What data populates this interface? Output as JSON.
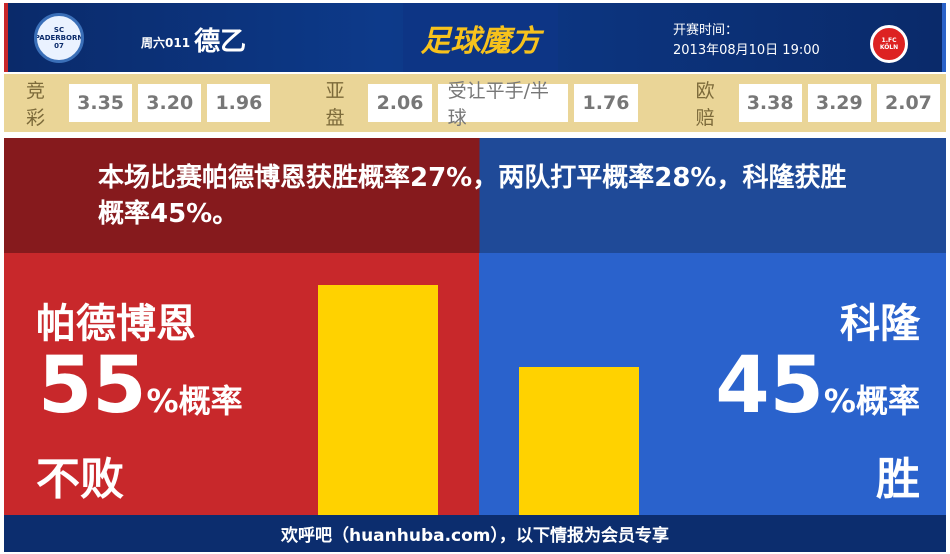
{
  "header": {
    "home_logo_text": "SC PADERBORN 07",
    "away_logo_text": "1.FC KÖLN",
    "match_no": "周六011",
    "league": "德乙",
    "brand": "足球魔方",
    "time_label": "开赛时间：",
    "time_value": "2013年08月10日 19:00"
  },
  "odds": {
    "jc_label": "竞彩",
    "jc": [
      "3.35",
      "3.20",
      "1.96"
    ],
    "ya_label": "亚盘",
    "ya": [
      "2.06",
      "受让平手/半球",
      "1.76"
    ],
    "ou_label": "欧赔",
    "ou": [
      "3.38",
      "3.29",
      "2.07"
    ]
  },
  "summary": "本场比赛帕德博恩获胜概率27%，两队打平概率28%，科隆获胜概率45%。",
  "home": {
    "name": "帕德博恩",
    "percent": "55",
    "unit": "%概率",
    "result": "不败",
    "value": 55
  },
  "away": {
    "name": "科隆",
    "percent": "45",
    "unit": "%概率",
    "result": "胜",
    "value": 45
  },
  "colors": {
    "home": "#c8282b",
    "away": "#2a62cc",
    "bar": "#ffd200"
  },
  "footer": "欢呼吧（huanhuba.com），以下情报为会员专享"
}
